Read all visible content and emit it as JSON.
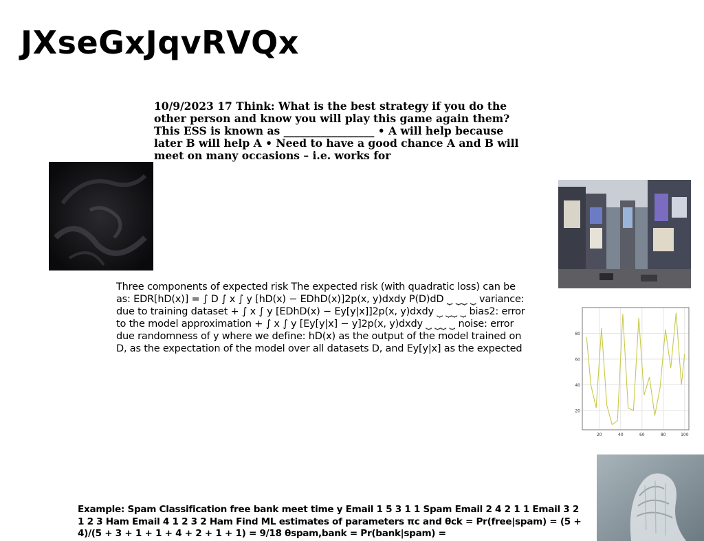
{
  "slide": {
    "title": "JXseGxJqvRVQx",
    "paragraph_1": "10/9/2023 17 Think: What is the best strategy if you do the other person and know you will play this game again them? This ESS is known as _________________ • A will help because later B will help A • Need to have a good chance A and B will meet on many occasions – i.e. works for",
    "paragraph_2": "Three components of expected risk The expected risk (with quadratic loss) can be as: EDR[hD(x)] = ∫ D ∫ x ∫ y [hD(x) − EDhD(x)]2p(x, y)dxdy P(D)dD ⏟ ⏟⏟ ⏟ variance: due to training dataset + ∫ x ∫ y [EDhD(x) − Ey[y|x]]2p(x, y)dxdy ⏟ ⏟⏟ ⏟ bias2: error to the model approximation + ∫ x ∫ y [Ey[y|x] − y]2p(x, y)dxdy ⏟ ⏟⏟ ⏟ noise: error due randomness of y where we define: hD(x) as the output of the model trained on D, as the expectation of the model over all datasets D, and Ey[y|x] as the expected",
    "paragraph_3": "Example: Spam Classification free bank meet time y Email 1 5 3 1 1 Spam Email 2 4 2 1 1 Email 3 2 1 2 3 Ham Email 4 1 2 3 2 Ham Find ML estimates of parameters πc and θck = Pr(free|spam) = (5 + 4)/(5 + 3 + 1 + 1 + 4 + 2 + 1 + 1) = 9/18 θspam,bank = Pr(bank|spam) ="
  },
  "images": {
    "dark_abstract": "dark abstract image",
    "city_street": "city street photo",
    "sculpture": "mesh sculpture photo"
  },
  "chart_data": {
    "type": "line",
    "x": [
      8,
      12,
      17,
      22,
      27,
      32,
      37,
      42,
      47,
      52,
      57,
      62,
      67,
      72,
      77,
      82,
      87,
      92,
      97,
      100
    ],
    "series": [
      {
        "values": [
          77,
          40,
          22,
          84,
          24,
          9,
          12,
          95,
          22,
          20,
          92,
          32,
          46,
          16,
          38,
          83,
          53,
          96,
          40,
          64
        ]
      }
    ],
    "xticks": [
      20,
      40,
      60,
      80,
      100
    ],
    "yticks": [
      20,
      40,
      60,
      80
    ],
    "xlim": [
      4,
      104
    ],
    "ylim": [
      5,
      100
    ],
    "grid": true,
    "line_color": "#c9c94a"
  }
}
